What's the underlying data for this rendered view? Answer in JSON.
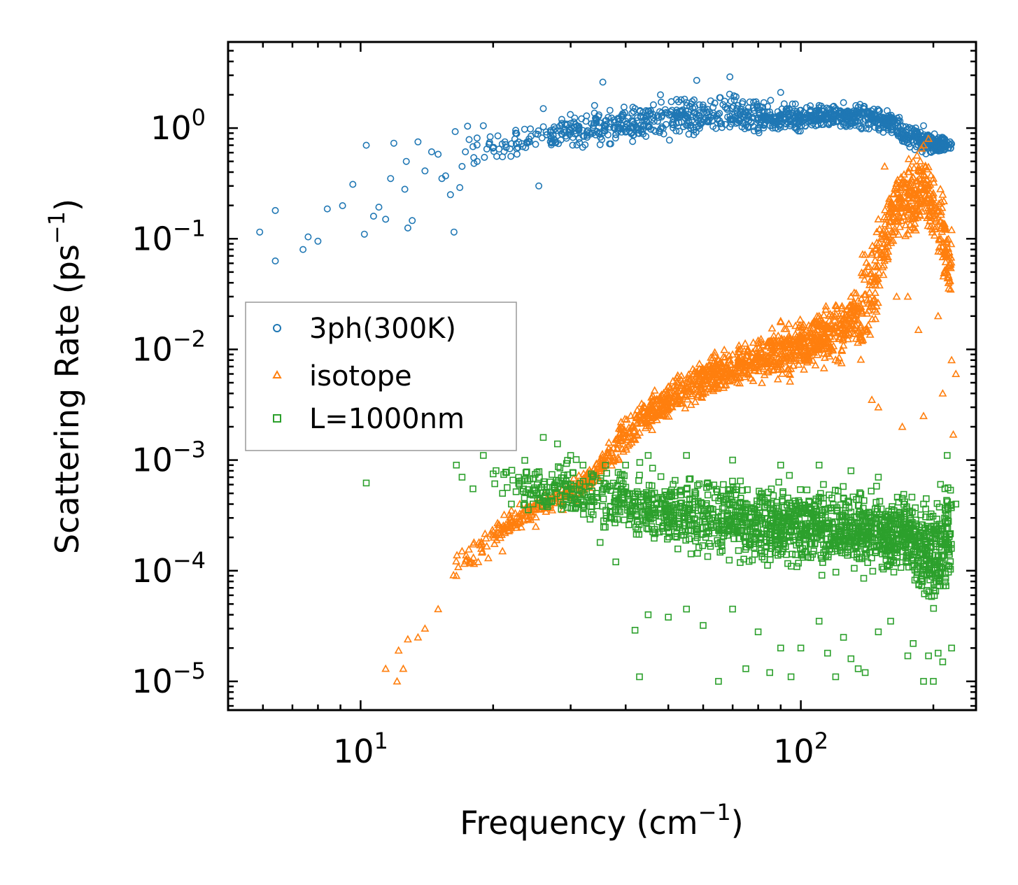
{
  "chart_data": {
    "type": "scatter",
    "title": "",
    "xlabel": {
      "text": "Frequency (cm",
      "sup": "−1",
      "suffix": ")"
    },
    "ylabel": {
      "text": "Scattering Rate (ps",
      "sup": "−1",
      "suffix": ")"
    },
    "xscale": "log",
    "yscale": "log",
    "xlim": [
      5,
      250
    ],
    "ylim": [
      5.5e-06,
      6
    ],
    "grid": false,
    "legend_position": "center-left",
    "x_ticks": [
      {
        "value": 10,
        "base": "10",
        "exp": "1"
      },
      {
        "value": 100,
        "base": "10",
        "exp": "2"
      }
    ],
    "y_ticks": [
      {
        "value": 1,
        "base": "10",
        "exp": "0"
      },
      {
        "value": 0.1,
        "base": "10",
        "exp": "−1"
      },
      {
        "value": 0.01,
        "base": "10",
        "exp": "−2"
      },
      {
        "value": 0.001,
        "base": "10",
        "exp": "−3"
      },
      {
        "value": 0.0001,
        "base": "10",
        "exp": "−4"
      },
      {
        "value": 1e-05,
        "base": "10",
        "exp": "−5"
      }
    ],
    "series": [
      {
        "name": "3ph(300K)",
        "marker": "circle",
        "color": "#1f77b4",
        "points": [
          [
            5.9,
            0.115
          ],
          [
            6.4,
            0.063
          ],
          [
            6.4,
            0.18
          ],
          [
            7.4,
            0.08
          ],
          [
            7.6,
            0.104
          ],
          [
            8.0,
            0.095
          ],
          [
            8.4,
            0.186
          ],
          [
            9.1,
            0.199
          ],
          [
            9.6,
            0.31
          ],
          [
            10.2,
            0.11
          ],
          [
            10.3,
            0.7
          ],
          [
            10.7,
            0.16
          ],
          [
            11.0,
            0.193
          ],
          [
            11.4,
            0.15
          ],
          [
            11.7,
            0.35
          ],
          [
            11.9,
            0.73
          ],
          [
            12.6,
            0.28
          ],
          [
            12.7,
            0.5
          ],
          [
            12.8,
            0.125
          ],
          [
            13.1,
            0.146
          ],
          [
            13.5,
            0.75
          ],
          [
            14.0,
            0.41
          ],
          [
            14.5,
            0.61
          ],
          [
            15.0,
            0.58
          ],
          [
            15.3,
            0.35
          ],
          [
            15.6,
            0.37
          ],
          [
            16.0,
            0.25
          ],
          [
            16.3,
            0.115
          ],
          [
            16.4,
            0.93
          ],
          [
            16.8,
            0.29
          ],
          [
            17.0,
            0.45
          ],
          [
            17.3,
            0.61
          ],
          [
            17.5,
            1.04
          ],
          [
            18.0,
            0.68
          ],
          [
            18.4,
            0.5
          ],
          [
            19.0,
            1.05
          ],
          [
            19.6,
            0.72
          ],
          [
            20.5,
            0.85
          ],
          [
            21.0,
            0.55
          ],
          [
            22.5,
            0.9
          ],
          [
            24.2,
            0.75
          ],
          [
            25.4,
            0.3
          ],
          [
            26.0,
            1.5
          ],
          [
            27.0,
            0.95
          ],
          [
            28.5,
            0.78
          ],
          [
            30.0,
            1.1
          ],
          [
            32.0,
            0.85
          ],
          [
            34.0,
            1.6
          ],
          [
            35.5,
            2.6
          ],
          [
            37.0,
            0.72
          ],
          [
            38.5,
            1.2
          ],
          [
            40.0,
            0.92
          ],
          [
            42.0,
            1.5
          ],
          [
            45.0,
            1.05
          ],
          [
            48.0,
            2.0
          ],
          [
            52.0,
            1.3
          ],
          [
            55.0,
            1.7
          ],
          [
            58.0,
            2.7
          ],
          [
            62.0,
            1.4
          ],
          [
            66.0,
            1.1
          ],
          [
            69.0,
            2.9
          ],
          [
            72.0,
            1.6
          ],
          [
            76.0,
            1.3
          ],
          [
            80.0,
            0.95
          ],
          [
            85.0,
            1.4
          ],
          [
            90.0,
            2.1
          ],
          [
            95.0,
            1.2
          ],
          [
            100.0,
            1.45
          ],
          [
            105.0,
            1.3
          ],
          [
            110.0,
            1.6
          ],
          [
            115.0,
            1.1
          ],
          [
            120.0,
            1.5
          ],
          [
            125.0,
            1.7
          ],
          [
            130.0,
            1.3
          ],
          [
            135.0,
            1.55
          ],
          [
            140.0,
            1.2
          ],
          [
            145.0,
            1.35
          ],
          [
            150.0,
            1.1
          ],
          [
            158.0,
            1.0
          ],
          [
            165.0,
            0.95
          ],
          [
            172.0,
            0.82
          ],
          [
            178.0,
            0.9
          ],
          [
            185.0,
            0.85
          ],
          [
            190.0,
            1.05
          ],
          [
            195.0,
            0.75
          ],
          [
            200.0,
            0.62
          ],
          [
            210.0,
            0.7
          ],
          [
            220.0,
            0.72
          ]
        ],
        "band": {
          "x": [
            17,
            20,
            25,
            30,
            40,
            50,
            60,
            70,
            80,
            90,
            100,
            120,
            140,
            160,
            175,
            190,
            200,
            210,
            220
          ],
          "low": [
            0.35,
            0.45,
            0.55,
            0.58,
            0.65,
            0.7,
            0.75,
            0.75,
            0.8,
            0.85,
            0.9,
            0.95,
            0.9,
            0.85,
            0.6,
            0.55,
            0.5,
            0.55,
            0.6
          ],
          "high": [
            1.1,
            1.0,
            1.25,
            1.5,
            1.8,
            2.0,
            2.2,
            2.4,
            2.0,
            1.8,
            1.7,
            1.7,
            1.8,
            1.5,
            1.2,
            1.1,
            1.0,
            0.9,
            0.8
          ]
        }
      },
      {
        "name": "isotope",
        "marker": "triangle",
        "color": "#ff7f0e",
        "points": [
          [
            11.4,
            1.3e-05
          ],
          [
            12.1,
            1e-05
          ],
          [
            12.5,
            1.3e-05
          ],
          [
            12.2,
            1.9e-05
          ],
          [
            12.8,
            2.4e-05
          ],
          [
            13.5,
            2.5e-05
          ],
          [
            14.0,
            3e-05
          ],
          [
            15.0,
            4.5e-05
          ],
          [
            16.5,
            9e-05
          ],
          [
            17.0,
            0.00015
          ],
          [
            18.5,
            0.00012
          ],
          [
            19.5,
            0.00013
          ],
          [
            21.0,
            0.00015
          ],
          [
            22.0,
            0.00035
          ],
          [
            23.0,
            0.0004
          ],
          [
            25.0,
            0.00025
          ],
          [
            27.0,
            0.00045
          ],
          [
            29.0,
            0.0005
          ],
          [
            33.0,
            0.0007
          ],
          [
            36.0,
            0.0011
          ],
          [
            40.0,
            0.0013
          ],
          [
            45.0,
            0.0025
          ],
          [
            50.0,
            0.0035
          ],
          [
            55.0,
            0.0045
          ],
          [
            60.0,
            0.006
          ],
          [
            70.0,
            0.009
          ],
          [
            80.0,
            0.012
          ],
          [
            90.0,
            0.018
          ],
          [
            100.0,
            0.013
          ],
          [
            110.0,
            0.02
          ],
          [
            120.0,
            0.025
          ],
          [
            130.0,
            0.03
          ],
          [
            140.0,
            0.05
          ],
          [
            150.0,
            0.15
          ],
          [
            155.0,
            0.45
          ],
          [
            160.0,
            0.2
          ],
          [
            170.0,
            0.32
          ],
          [
            180.0,
            0.5
          ],
          [
            190.0,
            0.7
          ],
          [
            195.0,
            0.8
          ],
          [
            200.0,
            0.35
          ],
          [
            210.0,
            0.25
          ],
          [
            220.0,
            0.12
          ],
          [
            215.0,
            0.05
          ],
          [
            205.0,
            0.02
          ],
          [
            185.0,
            0.015
          ],
          [
            175.0,
            0.03
          ],
          [
            165.0,
            0.03
          ],
          [
            150.0,
            0.003
          ],
          [
            145.0,
            0.0035
          ],
          [
            170.0,
            0.002
          ],
          [
            190.0,
            0.0025
          ],
          [
            210.0,
            0.004
          ],
          [
            220.0,
            0.008
          ],
          [
            225.0,
            0.006
          ],
          [
            222.0,
            0.0017
          ]
        ],
        "band": {
          "x": [
            16,
            20,
            25,
            30,
            35,
            40,
            45,
            50,
            60,
            70,
            80,
            90,
            100,
            110,
            120,
            130,
            140,
            150,
            160,
            170,
            180,
            190,
            200,
            210,
            220
          ],
          "low": [
            6e-05,
            0.00015,
            0.00025,
            0.00035,
            0.0006,
            0.0009,
            0.0016,
            0.002,
            0.0032,
            0.0038,
            0.0045,
            0.004,
            0.0055,
            0.006,
            0.0065,
            0.007,
            0.005,
            0.015,
            0.06,
            0.1,
            0.08,
            0.12,
            0.06,
            0.035,
            0.02
          ],
          "high": [
            0.00016,
            0.0003,
            0.0005,
            0.0007,
            0.0012,
            0.003,
            0.0045,
            0.006,
            0.009,
            0.012,
            0.015,
            0.02,
            0.022,
            0.028,
            0.03,
            0.045,
            0.1,
            0.25,
            0.5,
            0.55,
            0.7,
            0.8,
            0.6,
            0.3,
            0.12
          ]
        }
      },
      {
        "name": "L=1000nm",
        "marker": "square",
        "color": "#2ca02c",
        "points": [
          [
            10.3,
            0.00062
          ],
          [
            16.5,
            0.0009
          ],
          [
            17.0,
            0.0007
          ],
          [
            18.0,
            0.00055
          ],
          [
            19.0,
            0.0011
          ],
          [
            20.0,
            0.00075
          ],
          [
            21.0,
            0.0005
          ],
          [
            22.0,
            0.0004
          ],
          [
            24.0,
            0.00065
          ],
          [
            26.0,
            0.0016
          ],
          [
            28.0,
            0.0014
          ],
          [
            30.0,
            0.0011
          ],
          [
            32.0,
            0.0009
          ],
          [
            35.0,
            0.00018
          ],
          [
            38.0,
            0.00012
          ],
          [
            40.0,
            0.0009
          ],
          [
            42.0,
            2.9e-05
          ],
          [
            43.0,
            1.1e-05
          ],
          [
            45.0,
            4e-05
          ],
          [
            50.0,
            3.8e-05
          ],
          [
            55.0,
            4.5e-05
          ],
          [
            60.0,
            3.2e-05
          ],
          [
            65.0,
            1e-05
          ],
          [
            70.0,
            4.5e-05
          ],
          [
            75.0,
            1.3e-05
          ],
          [
            80.0,
            2.8e-05
          ],
          [
            85.0,
            1.2e-05
          ],
          [
            90.0,
            2e-05
          ],
          [
            95.0,
            1.1e-05
          ],
          [
            100.0,
            2e-05
          ],
          [
            110.0,
            3.5e-05
          ],
          [
            115.0,
            1.8e-05
          ],
          [
            120.0,
            1.1e-05
          ],
          [
            125.0,
            2.5e-05
          ],
          [
            130.0,
            1.6e-05
          ],
          [
            135.0,
            1.3e-05
          ],
          [
            140.0,
            1.2e-05
          ],
          [
            150.0,
            2.8e-05
          ],
          [
            160.0,
            3.5e-05
          ],
          [
            175.0,
            1.7e-05
          ],
          [
            180.0,
            2.2e-05
          ],
          [
            190.0,
            1e-05
          ],
          [
            195.0,
            1.7e-05
          ],
          [
            200.0,
            1e-05
          ],
          [
            205.0,
            1.8e-05
          ],
          [
            210.0,
            1.5e-05
          ],
          [
            220.0,
            2e-05
          ],
          [
            225.0,
            0.0004
          ],
          [
            215.0,
            0.0011
          ],
          [
            190.0,
            0.0004
          ],
          [
            170.0,
            0.00045
          ],
          [
            150.0,
            0.0007
          ],
          [
            130.0,
            0.0008
          ],
          [
            110.0,
            0.0009
          ],
          [
            90.0,
            0.0009
          ],
          [
            70.0,
            0.001
          ],
          [
            55.0,
            0.0011
          ],
          [
            45.0,
            0.0011
          ]
        ],
        "band": {
          "x": [
            20,
            25,
            30,
            40,
            50,
            60,
            70,
            80,
            90,
            100,
            120,
            140,
            160,
            175,
            190,
            200,
            210,
            220
          ],
          "low": [
            0.00045,
            0.0003,
            0.00025,
            0.00017,
            0.00012,
            0.0001,
            0.0001,
            9e-05,
            9e-05,
            9e-05,
            8e-05,
            8e-05,
            7e-05,
            8e-05,
            4e-05,
            3e-05,
            4e-05,
            6e-05
          ],
          "high": [
            0.001,
            0.0011,
            0.0011,
            0.001,
            0.00095,
            0.0009,
            0.0009,
            0.0008,
            0.0008,
            0.0007,
            0.00075,
            0.0007,
            0.0006,
            0.0006,
            0.0005,
            0.0006,
            0.0009,
            0.001
          ]
        }
      }
    ]
  }
}
